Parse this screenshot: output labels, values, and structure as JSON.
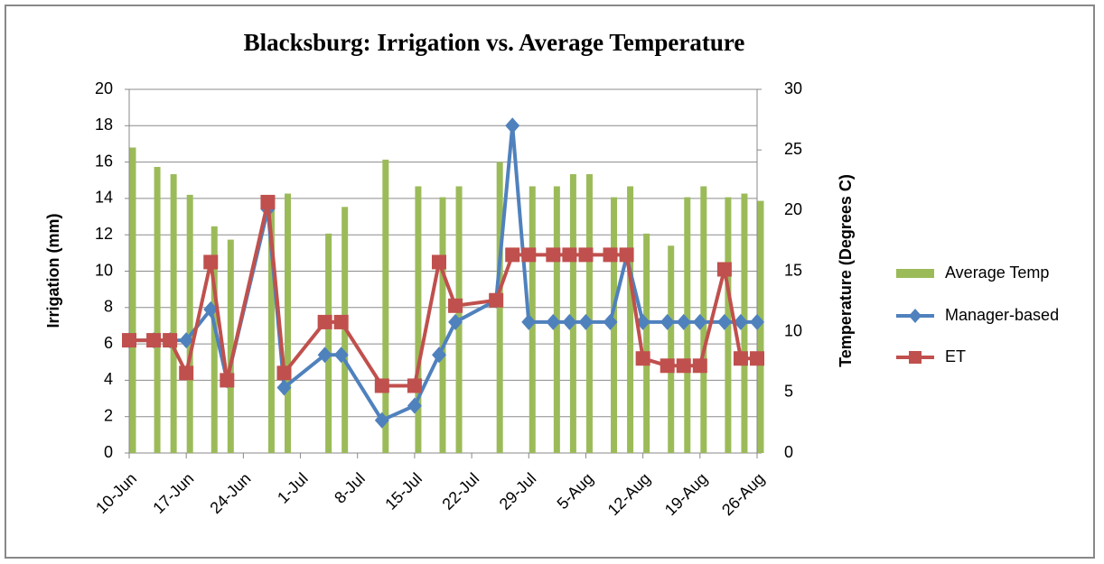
{
  "chart_data": {
    "type": "bar-line",
    "title": "Blacksburg: Irrigation vs. Average Temperature",
    "y_label": "Irrigation (mm)",
    "y2_label": "Temperature (Degrees C)",
    "x": [
      "10-Jun",
      "13-Jun",
      "15-Jun",
      "17-Jun",
      "20-Jun",
      "22-Jun",
      "27-Jun",
      "29-Jun",
      "4-Jul",
      "6-Jul",
      "11-Jul",
      "15-Jul",
      "18-Jul",
      "20-Jul",
      "25-Jul",
      "27-Jul",
      "29-Jul",
      "1-Aug",
      "3-Aug",
      "5-Aug",
      "8-Aug",
      "10-Aug",
      "12-Aug",
      "15-Aug",
      "17-Aug",
      "19-Aug",
      "22-Aug",
      "24-Aug",
      "26-Aug"
    ],
    "xlim": [
      "10-Jun",
      "26-Aug"
    ],
    "xticks": [
      "10-Jun",
      "17-Jun",
      "24-Jun",
      "1-Jul",
      "8-Jul",
      "15-Jul",
      "22-Jul",
      "29-Jul",
      "5-Aug",
      "12-Aug",
      "19-Aug",
      "26-Aug"
    ],
    "ylim": [
      0,
      20
    ],
    "yticks": [
      0,
      2,
      4,
      6,
      8,
      10,
      12,
      14,
      16,
      18,
      20
    ],
    "y2lim": [
      0,
      30
    ],
    "y2ticks": [
      0,
      5,
      10,
      15,
      20,
      25,
      30
    ],
    "grid": true,
    "legend": "right",
    "series": [
      {
        "name": "Average Temp",
        "type": "bar",
        "axis": "y2",
        "color": "#9bbb59",
        "values": [
          25.2,
          23.6,
          23.0,
          21.3,
          18.7,
          17.6,
          21.0,
          21.4,
          18.1,
          20.3,
          24.2,
          22.0,
          21.1,
          22.0,
          24.0,
          null,
          22.0,
          22.0,
          23.0,
          23.0,
          21.1,
          22.0,
          18.1,
          17.1,
          21.1,
          22.0,
          21.1,
          21.4,
          20.8
        ]
      },
      {
        "name": "Manager-based",
        "type": "line",
        "marker": "diamond",
        "color": "#4f81bd",
        "values": [
          6.2,
          6.2,
          6.2,
          6.2,
          7.9,
          4.0,
          13.4,
          3.6,
          5.4,
          5.4,
          1.8,
          2.6,
          5.4,
          7.2,
          8.4,
          18.0,
          7.2,
          7.2,
          7.2,
          7.2,
          7.2,
          10.8,
          7.2,
          7.2,
          7.2,
          7.2,
          7.2,
          7.2,
          7.2
        ]
      },
      {
        "name": "ET",
        "type": "line",
        "marker": "square",
        "color": "#c0504d",
        "values": [
          6.2,
          6.2,
          6.2,
          4.4,
          10.5,
          4.0,
          13.8,
          4.4,
          7.2,
          7.2,
          3.7,
          3.7,
          10.5,
          8.1,
          8.4,
          10.9,
          10.9,
          10.9,
          10.9,
          10.9,
          10.9,
          10.9,
          5.2,
          4.8,
          4.8,
          4.8,
          10.1,
          5.2,
          5.2
        ]
      }
    ]
  }
}
